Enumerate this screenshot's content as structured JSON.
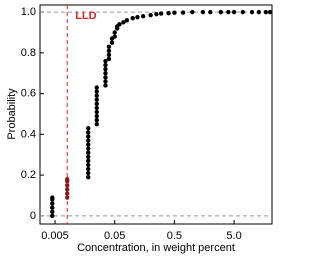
{
  "chart_data": {
    "type": "scatter",
    "x_label": "Concentration, in weight percent",
    "y_label": "Probability",
    "xlim": [
      0.0028,
      21.6
    ],
    "ylim": [
      -0.04,
      1.035
    ],
    "x_scale": "log",
    "xticks": [
      0.005,
      0.05,
      0.5,
      {
        "value": 5,
        "label": "5.0"
      }
    ],
    "yticks": [
      0,
      0.2,
      0.4,
      0.6,
      0.8,
      {
        "value": 1,
        "label": "1.0"
      }
    ],
    "reference_lines": [
      0,
      1
    ],
    "annotations": [
      {
        "text": "LLD",
        "x": 0.008,
        "color": "#d62728"
      }
    ],
    "series": [
      {
        "color": "#000000",
        "x": [
          0.0045,
          0.0045,
          0.0045,
          0.0045,
          0.0045,
          0.0045,
          0.018,
          0.018,
          0.018,
          0.018,
          0.018,
          0.018,
          0.018,
          0.018,
          0.018,
          0.018,
          0.018,
          0.018,
          0.018,
          0.025,
          0.025,
          0.025,
          0.025,
          0.025,
          0.025,
          0.025,
          0.025,
          0.025,
          0.025,
          0.035,
          0.035,
          0.035,
          0.035,
          0.035,
          0.035,
          0.035,
          0.04,
          0.04,
          0.04,
          0.04,
          0.045,
          0.045,
          0.05,
          0.05,
          0.055,
          0.055,
          0.06,
          0.07,
          0.08,
          0.1,
          0.12,
          0.15,
          0.2,
          0.25,
          0.3,
          0.4,
          0.5,
          0.7,
          1,
          1.5,
          2,
          3,
          4,
          5,
          7,
          10,
          13,
          17,
          20
        ],
        "y": [
          0,
          0.02,
          0.04,
          0.06,
          0.08,
          0.09,
          0.19,
          0.21,
          0.23,
          0.25,
          0.27,
          0.29,
          0.31,
          0.33,
          0.35,
          0.37,
          0.39,
          0.41,
          0.43,
          0.45,
          0.47,
          0.49,
          0.51,
          0.53,
          0.55,
          0.57,
          0.59,
          0.61,
          0.63,
          0.64,
          0.66,
          0.68,
          0.7,
          0.72,
          0.74,
          0.76,
          0.77,
          0.79,
          0.81,
          0.83,
          0.85,
          0.87,
          0.88,
          0.9,
          0.92,
          0.93,
          0.94,
          0.95,
          0.96,
          0.97,
          0.975,
          0.98,
          0.985,
          0.99,
          0.993,
          0.995,
          0.997,
          0.998,
          1,
          1,
          1,
          1,
          1,
          1,
          1,
          1,
          1,
          1,
          1
        ]
      },
      {
        "color": "#8b1a1a",
        "x": [
          0.008,
          0.008,
          0.008,
          0.008,
          0.008,
          0.008
        ],
        "y": [
          0.09,
          0.11,
          0.13,
          0.15,
          0.17,
          0.18
        ]
      }
    ]
  }
}
